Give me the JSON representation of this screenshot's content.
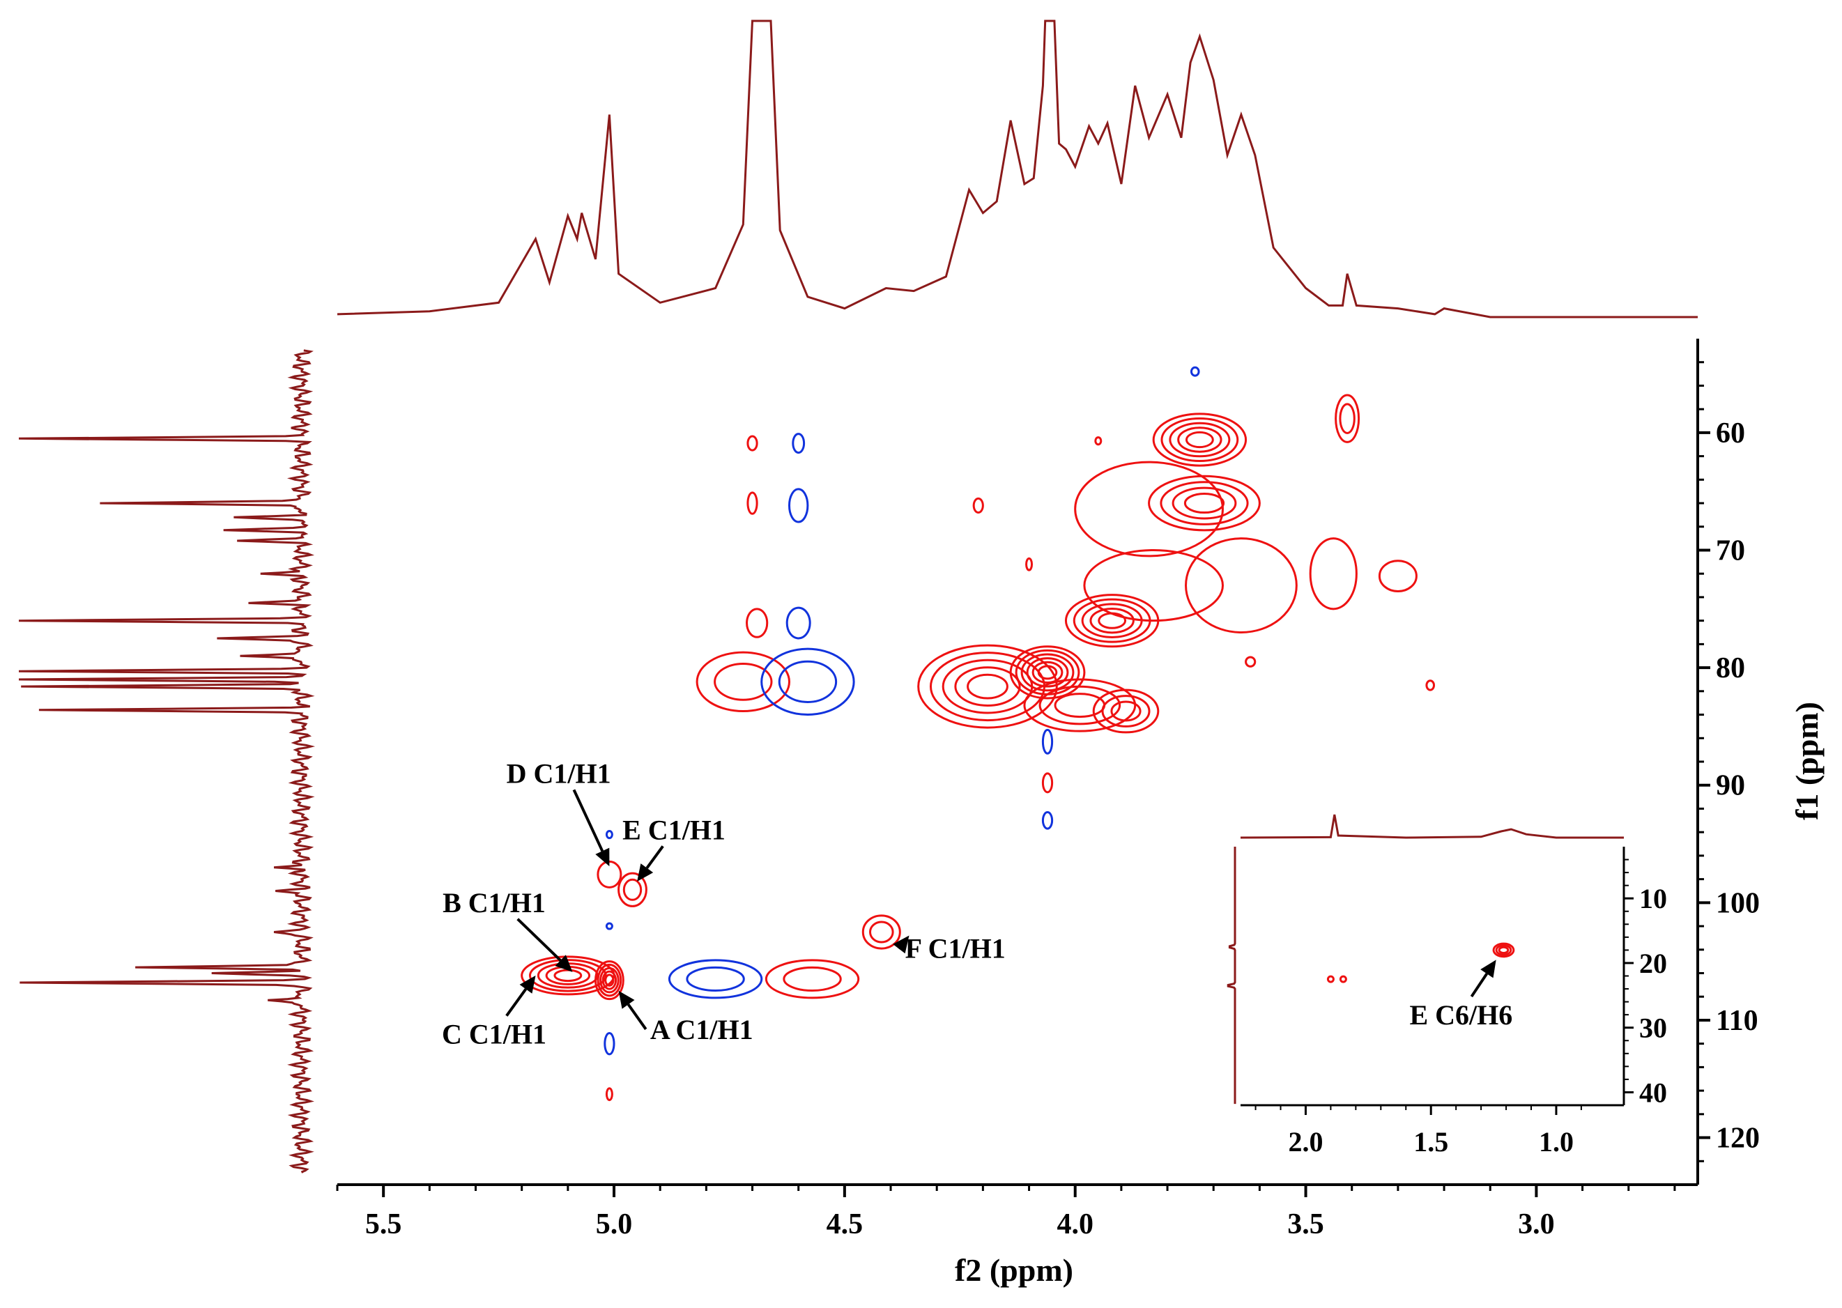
{
  "chart_data": {
    "type": "2d-nmr-contour",
    "xlabel": "f2 (ppm)",
    "ylabel": "f1 (ppm)",
    "x_ticks": [
      {
        "v": 5.5,
        "label": "5.5"
      },
      {
        "v": 5.0,
        "label": "5.0"
      },
      {
        "v": 4.5,
        "label": "4.5"
      },
      {
        "v": 4.0,
        "label": "4.0"
      },
      {
        "v": 3.5,
        "label": "3.5"
      },
      {
        "v": 3.0,
        "label": "3.0"
      }
    ],
    "y_ticks": [
      {
        "v": 60,
        "label": "60"
      },
      {
        "v": 70,
        "label": "70"
      },
      {
        "v": 80,
        "label": "80"
      },
      {
        "v": 90,
        "label": "90"
      },
      {
        "v": 100,
        "label": "100"
      },
      {
        "v": 110,
        "label": "110"
      },
      {
        "v": 120,
        "label": "120"
      }
    ],
    "xlim": [
      5.6,
      2.65
    ],
    "ylim": [
      52,
      124
    ],
    "colors": {
      "positive": "#ee1111",
      "negative": "#1133dd",
      "projection": "#8b1a1a",
      "label": "#000000"
    },
    "projection_f2": [
      {
        "x": 5.6,
        "y": 0.01
      },
      {
        "x": 5.4,
        "y": 0.02
      },
      {
        "x": 5.25,
        "y": 0.05
      },
      {
        "x": 5.17,
        "y": 0.27
      },
      {
        "x": 5.14,
        "y": 0.12
      },
      {
        "x": 5.1,
        "y": 0.35
      },
      {
        "x": 5.08,
        "y": 0.27
      },
      {
        "x": 5.07,
        "y": 0.36
      },
      {
        "x": 5.04,
        "y": 0.2
      },
      {
        "x": 5.01,
        "y": 0.7
      },
      {
        "x": 4.99,
        "y": 0.15
      },
      {
        "x": 4.9,
        "y": 0.05
      },
      {
        "x": 4.78,
        "y": 0.1
      },
      {
        "x": 4.72,
        "y": 0.32
      },
      {
        "x": 4.7,
        "y": 1.1
      },
      {
        "x": 4.66,
        "y": 1.1
      },
      {
        "x": 4.64,
        "y": 0.3
      },
      {
        "x": 4.58,
        "y": 0.07
      },
      {
        "x": 4.5,
        "y": 0.03
      },
      {
        "x": 4.41,
        "y": 0.1
      },
      {
        "x": 4.35,
        "y": 0.09
      },
      {
        "x": 4.28,
        "y": 0.14
      },
      {
        "x": 4.23,
        "y": 0.44
      },
      {
        "x": 4.2,
        "y": 0.36
      },
      {
        "x": 4.17,
        "y": 0.4
      },
      {
        "x": 4.14,
        "y": 0.68
      },
      {
        "x": 4.11,
        "y": 0.46
      },
      {
        "x": 4.09,
        "y": 0.48
      },
      {
        "x": 4.07,
        "y": 0.8
      },
      {
        "x": 4.065,
        "y": 1.1
      },
      {
        "x": 4.045,
        "y": 1.1
      },
      {
        "x": 4.035,
        "y": 0.6
      },
      {
        "x": 4.02,
        "y": 0.58
      },
      {
        "x": 4.0,
        "y": 0.52
      },
      {
        "x": 3.97,
        "y": 0.66
      },
      {
        "x": 3.95,
        "y": 0.6
      },
      {
        "x": 3.93,
        "y": 0.67
      },
      {
        "x": 3.9,
        "y": 0.46
      },
      {
        "x": 3.87,
        "y": 0.8
      },
      {
        "x": 3.84,
        "y": 0.62
      },
      {
        "x": 3.8,
        "y": 0.77
      },
      {
        "x": 3.77,
        "y": 0.62
      },
      {
        "x": 3.75,
        "y": 0.88
      },
      {
        "x": 3.73,
        "y": 0.97
      },
      {
        "x": 3.7,
        "y": 0.82
      },
      {
        "x": 3.67,
        "y": 0.56
      },
      {
        "x": 3.64,
        "y": 0.7
      },
      {
        "x": 3.61,
        "y": 0.56
      },
      {
        "x": 3.57,
        "y": 0.24
      },
      {
        "x": 3.5,
        "y": 0.1
      },
      {
        "x": 3.45,
        "y": 0.04
      },
      {
        "x": 3.42,
        "y": 0.04
      },
      {
        "x": 3.41,
        "y": 0.15
      },
      {
        "x": 3.39,
        "y": 0.04
      },
      {
        "x": 3.3,
        "y": 0.03
      },
      {
        "x": 3.22,
        "y": 0.01
      },
      {
        "x": 3.2,
        "y": 0.03
      },
      {
        "x": 3.1,
        "y": 0.0
      },
      {
        "x": 2.65,
        "y": 0.0
      }
    ],
    "projection_f1_peaks": [
      {
        "f1": 60.5,
        "amp": 1.0
      },
      {
        "f1": 66.0,
        "amp": 0.74
      },
      {
        "f1": 67.2,
        "amp": 0.22
      },
      {
        "f1": 68.3,
        "amp": 0.25
      },
      {
        "f1": 69.2,
        "amp": 0.2
      },
      {
        "f1": 72.0,
        "amp": 0.15
      },
      {
        "f1": 74.5,
        "amp": 0.18
      },
      {
        "f1": 76.0,
        "amp": 1.0
      },
      {
        "f1": 77.5,
        "amp": 0.3
      },
      {
        "f1": 79.0,
        "amp": 0.25
      },
      {
        "f1": 80.3,
        "amp": 1.0
      },
      {
        "f1": 81.0,
        "amp": 1.0
      },
      {
        "f1": 81.6,
        "amp": 1.0
      },
      {
        "f1": 83.6,
        "amp": 0.9
      },
      {
        "f1": 97.0,
        "amp": 0.1
      },
      {
        "f1": 99.0,
        "amp": 0.08
      },
      {
        "f1": 102.5,
        "amp": 0.1
      },
      {
        "f1": 105.5,
        "amp": 0.6
      },
      {
        "f1": 106.0,
        "amp": 0.3
      },
      {
        "f1": 106.8,
        "amp": 1.0
      },
      {
        "f1": 108.3,
        "amp": 0.15
      }
    ],
    "peaks": [
      {
        "f2": 4.7,
        "f1": 60.9,
        "w": 0.01,
        "h": 0.6,
        "sign": "+",
        "levels": 1
      },
      {
        "f2": 4.6,
        "f1": 60.9,
        "w": 0.012,
        "h": 0.8,
        "sign": "-",
        "levels": 1
      },
      {
        "f2": 4.7,
        "f1": 66.0,
        "w": 0.01,
        "h": 0.9,
        "sign": "+",
        "levels": 1
      },
      {
        "f2": 4.6,
        "f1": 66.2,
        "w": 0.02,
        "h": 1.4,
        "sign": "-",
        "levels": 1
      },
      {
        "f2": 4.69,
        "f1": 76.2,
        "w": 0.022,
        "h": 1.2,
        "sign": "+",
        "levels": 1
      },
      {
        "f2": 4.6,
        "f1": 76.2,
        "w": 0.025,
        "h": 1.3,
        "sign": "-",
        "levels": 1
      },
      {
        "f2": 4.72,
        "f1": 81.2,
        "w": 0.1,
        "h": 2.5,
        "sign": "+",
        "levels": 2
      },
      {
        "f2": 4.58,
        "f1": 81.2,
        "w": 0.1,
        "h": 2.8,
        "sign": "-",
        "levels": 2
      },
      {
        "f2": 3.73,
        "f1": 60.6,
        "w": 0.1,
        "h": 2.2,
        "sign": "+",
        "levels": 5
      },
      {
        "f2": 3.72,
        "f1": 66.0,
        "w": 0.12,
        "h": 2.3,
        "sign": "+",
        "levels": 4
      },
      {
        "f2": 3.84,
        "f1": 66.5,
        "w": 0.16,
        "h": 4.0,
        "sign": "+",
        "levels": 1
      },
      {
        "f2": 3.92,
        "f1": 76.0,
        "w": 0.1,
        "h": 2.2,
        "sign": "+",
        "levels": 5
      },
      {
        "f2": 3.83,
        "f1": 73.0,
        "w": 0.15,
        "h": 3.0,
        "sign": "+",
        "levels": 1
      },
      {
        "f2": 4.19,
        "f1": 81.6,
        "w": 0.15,
        "h": 3.5,
        "sign": "+",
        "levels": 5
      },
      {
        "f2": 4.06,
        "f1": 80.4,
        "w": 0.08,
        "h": 2.2,
        "sign": "+",
        "levels": 6
      },
      {
        "f2": 3.89,
        "f1": 83.7,
        "w": 0.07,
        "h": 1.8,
        "sign": "+",
        "levels": 3
      },
      {
        "f2": 3.99,
        "f1": 83.2,
        "w": 0.12,
        "h": 2.2,
        "sign": "+",
        "levels": 3
      },
      {
        "f2": 3.64,
        "f1": 73.0,
        "w": 0.12,
        "h": 4.0,
        "sign": "+",
        "levels": 1
      },
      {
        "f2": 3.44,
        "f1": 72.0,
        "w": 0.05,
        "h": 3.0,
        "sign": "+",
        "levels": 1
      },
      {
        "f2": 3.3,
        "f1": 72.2,
        "w": 0.04,
        "h": 1.3,
        "sign": "+",
        "levels": 1
      },
      {
        "f2": 3.41,
        "f1": 58.8,
        "w": 0.025,
        "h": 2.0,
        "sign": "+",
        "levels": 2
      },
      {
        "f2": 3.74,
        "f1": 54.8,
        "w": 0.008,
        "h": 0.35,
        "sign": "-",
        "levels": 1
      },
      {
        "f2": 4.21,
        "f1": 66.2,
        "w": 0.01,
        "h": 0.6,
        "sign": "+",
        "levels": 1
      },
      {
        "f2": 4.1,
        "f1": 71.2,
        "w": 0.006,
        "h": 0.5,
        "sign": "+",
        "levels": 1
      },
      {
        "f2": 3.95,
        "f1": 60.7,
        "w": 0.006,
        "h": 0.3,
        "sign": "+",
        "levels": 1
      },
      {
        "f2": 3.62,
        "f1": 79.5,
        "w": 0.01,
        "h": 0.4,
        "sign": "+",
        "levels": 1
      },
      {
        "f2": 3.23,
        "f1": 81.5,
        "w": 0.008,
        "h": 0.4,
        "sign": "+",
        "levels": 1
      },
      {
        "f2": 4.06,
        "f1": 86.3,
        "w": 0.01,
        "h": 1.0,
        "sign": "-",
        "levels": 1
      },
      {
        "f2": 4.06,
        "f1": 89.8,
        "w": 0.01,
        "h": 0.8,
        "sign": "+",
        "levels": 1
      },
      {
        "f2": 4.06,
        "f1": 93.0,
        "w": 0.01,
        "h": 0.7,
        "sign": "-",
        "levels": 1
      },
      {
        "f2": 5.01,
        "f1": 97.6,
        "w": 0.025,
        "h": 1.1,
        "sign": "+",
        "levels": 1
      },
      {
        "f2": 4.96,
        "f1": 98.9,
        "w": 0.03,
        "h": 1.4,
        "sign": "+",
        "levels": 2
      },
      {
        "f2": 5.01,
        "f1": 94.2,
        "w": 0.004,
        "h": 0.3,
        "sign": "-",
        "levels": 1
      },
      {
        "f2": 4.42,
        "f1": 102.5,
        "w": 0.04,
        "h": 1.4,
        "sign": "+",
        "levels": 2
      },
      {
        "f2": 5.1,
        "f1": 106.2,
        "w": 0.1,
        "h": 1.6,
        "sign": "+",
        "levels": 5
      },
      {
        "f2": 5.01,
        "f1": 106.6,
        "w": 0.03,
        "h": 1.6,
        "sign": "+",
        "levels": 5
      },
      {
        "f2": 4.78,
        "f1": 106.5,
        "w": 0.1,
        "h": 1.6,
        "sign": "-",
        "levels": 2
      },
      {
        "f2": 4.57,
        "f1": 106.5,
        "w": 0.1,
        "h": 1.6,
        "sign": "+",
        "levels": 2
      },
      {
        "f2": 5.01,
        "f1": 112.0,
        "w": 0.01,
        "h": 0.9,
        "sign": "-",
        "levels": 1
      },
      {
        "f2": 5.01,
        "f1": 116.3,
        "w": 0.005,
        "h": 0.5,
        "sign": "+",
        "levels": 1
      },
      {
        "f2": 5.01,
        "f1": 102.0,
        "w": 0.003,
        "h": 0.2,
        "sign": "-",
        "levels": 1
      }
    ],
    "annotations": [
      {
        "text": "D C1/H1",
        "tx": 5.12,
        "ty": 89.8,
        "ax": 5.01,
        "ay": 96.9
      },
      {
        "text": "E C1/H1",
        "tx": 4.87,
        "ty": 94.6,
        "ax": 4.95,
        "ay": 98.2
      },
      {
        "text": "B C1/H1",
        "tx": 5.26,
        "ty": 100.8,
        "ax": 5.09,
        "ay": 105.9
      },
      {
        "text": "F C1/H1",
        "tx": 4.26,
        "ty": 104.7,
        "ax": 4.36,
        "ay": 102.8
      },
      {
        "text": "C C1/H1",
        "tx": 5.26,
        "ty": 112.0,
        "ax": 5.17,
        "ay": 106.2
      },
      {
        "text": "A C1/H1",
        "tx": 4.81,
        "ty": 111.6,
        "ax": 4.99,
        "ay": 107.5
      }
    ],
    "inset": {
      "xlim": [
        2.26,
        0.73
      ],
      "ylim": [
        2,
        42
      ],
      "x_ticks": [
        {
          "v": 2.0,
          "label": "2.0"
        },
        {
          "v": 1.5,
          "label": "1.5"
        },
        {
          "v": 1.0,
          "label": "1.0"
        }
      ],
      "y_ticks": [
        {
          "v": 10,
          "label": "10"
        },
        {
          "v": 20,
          "label": "20"
        },
        {
          "v": 30,
          "label": "30"
        },
        {
          "v": 40,
          "label": "40"
        }
      ],
      "projection_f2": [
        {
          "x": 2.26,
          "y": 0.0
        },
        {
          "x": 1.9,
          "y": 0.01
        },
        {
          "x": 1.885,
          "y": 0.55
        },
        {
          "x": 1.87,
          "y": 0.05
        },
        {
          "x": 1.6,
          "y": 0.0
        },
        {
          "x": 1.3,
          "y": 0.02
        },
        {
          "x": 1.22,
          "y": 0.15
        },
        {
          "x": 1.18,
          "y": 0.2
        },
        {
          "x": 1.12,
          "y": 0.08
        },
        {
          "x": 1.0,
          "y": 0.0
        },
        {
          "x": 0.73,
          "y": 0.0
        }
      ],
      "projection_f1_peaks": [
        {
          "f1": 17.5,
          "amp": 0.7
        },
        {
          "f1": 23.5,
          "amp": 0.9
        }
      ],
      "peaks": [
        {
          "f2": 1.9,
          "f1": 22.5,
          "w": 0.008,
          "h": 0.35,
          "sign": "+",
          "levels": 1
        },
        {
          "f2": 1.85,
          "f1": 22.5,
          "w": 0.004,
          "h": 0.25,
          "sign": "+",
          "levels": 1
        },
        {
          "f2": 1.21,
          "f1": 18.0,
          "w": 0.04,
          "h": 1.0,
          "sign": "+",
          "levels": 3
        }
      ],
      "annotations": [
        {
          "text": "E C6/H6",
          "tx": 1.38,
          "ty": 29.5,
          "ax": 1.24,
          "ay": 19.5
        }
      ]
    }
  }
}
